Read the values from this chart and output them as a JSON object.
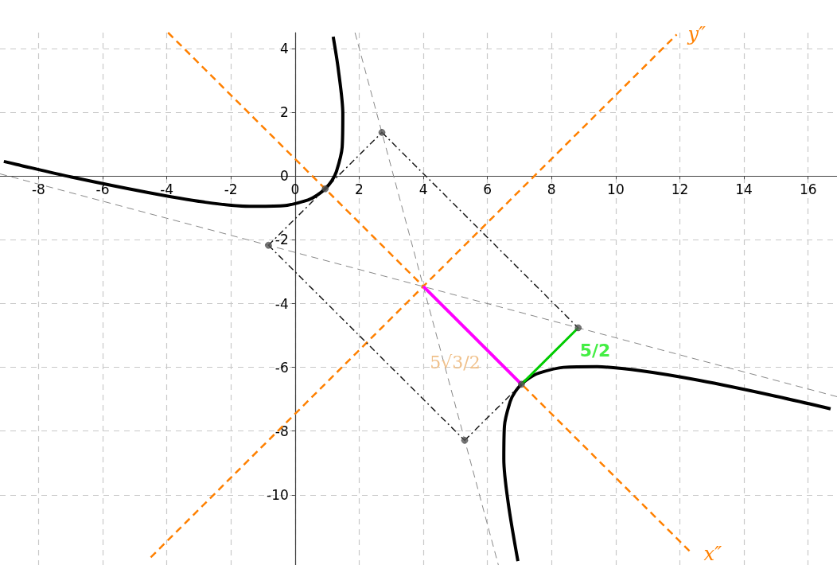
{
  "chart_data": {
    "type": "line",
    "xlim": [
      -9.2,
      16.9
    ],
    "ylim": [
      -12.2,
      4.5
    ],
    "xticks": [
      -8,
      -6,
      -4,
      -2,
      0,
      2,
      4,
      6,
      8,
      10,
      12,
      14,
      16
    ],
    "yticks": [
      -10,
      -8,
      -6,
      -4,
      -2,
      0,
      2,
      4
    ],
    "grid": true,
    "legend": false,
    "marker": "none",
    "series": [
      {
        "color": "#000000",
        "line_style": "solid",
        "x": [
          6.95,
          6.65,
          6.51,
          6.53,
          6.71,
          6.86,
          7.06,
          7.31,
          7.6,
          8.37,
          9.42,
          10.8,
          12.61,
          14.97,
          16.7
        ],
        "values": [
          -12.08,
          -10.27,
          -8.88,
          -7.84,
          -7.07,
          -6.77,
          -6.53,
          -6.33,
          -6.18,
          -6.0,
          -5.98,
          -6.11,
          -6.41,
          -6.9,
          -7.3
        ]
      },
      {
        "color": "#000000",
        "line_style": "solid",
        "x": [
          -9.08,
          -8.7,
          -6.97,
          -4.61,
          -2.8,
          -1.42,
          -0.37,
          0.4,
          0.69,
          0.94,
          1.14,
          1.29,
          1.47,
          1.49,
          1.35,
          1.19
        ],
        "values": [
          0.46,
          0.37,
          -0.03,
          -0.51,
          -0.82,
          -0.95,
          -0.93,
          -0.75,
          -0.6,
          -0.4,
          -0.16,
          0.14,
          0.91,
          1.95,
          3.34,
          4.37
        ]
      },
      {
        "name": "x″",
        "color": "#ff8000",
        "line_style": "dashed",
        "x": [
          -3.96,
          12.4
        ],
        "values": [
          4.5,
          -11.86
        ]
      },
      {
        "name": "y″",
        "color": "#ff8000",
        "line_style": "dashed",
        "x": [
          -4.5,
          11.9
        ],
        "values": [
          -11.96,
          4.44
        ]
      },
      {
        "color": "#888888",
        "line_style": "dashed",
        "x": [
          1.87,
          6.34
        ],
        "values": [
          4.5,
          -12.2
        ]
      },
      {
        "color": "#888888",
        "line_style": "dashed",
        "x": [
          -9.2,
          16.9
        ],
        "values": [
          0.07,
          -6.92
        ]
      },
      {
        "color": "#1a1a1a",
        "line_style": "dashed",
        "x": [
          2.71,
          8.83
        ],
        "values": [
          1.37,
          -4.76
        ]
      },
      {
        "color": "#1a1a1a",
        "line_style": "dashed",
        "x": [
          5.29,
          8.83
        ],
        "values": [
          -8.29,
          -4.76
        ]
      },
      {
        "color": "#1a1a1a",
        "line_style": "dashed",
        "x": [
          -0.83,
          5.29
        ],
        "values": [
          -2.17,
          -8.29
        ]
      },
      {
        "color": "#1a1a1a",
        "line_style": "dashed",
        "x": [
          -0.83,
          2.71
        ],
        "values": [
          -2.17,
          1.37
        ]
      },
      {
        "color": "#ff00ff",
        "line_style": "solid",
        "x": [
          4,
          7.06
        ],
        "values": [
          -3.46,
          -6.53
        ]
      },
      {
        "color": "#00cc00",
        "line_style": "solid",
        "x": [
          7.06,
          8.83
        ],
        "values": [
          -6.53,
          -4.76
        ]
      },
      {
        "type": "scatter",
        "marker": "circle",
        "color": "#555555",
        "x": [
          2.71,
          8.83,
          5.29,
          -0.83,
          0.94,
          7.06
        ],
        "values": [
          1.37,
          -4.76,
          -8.29,
          -2.17,
          -0.4,
          -6.53
        ]
      }
    ],
    "annotations": [
      "5√3/2",
      "5/2"
    ]
  }
}
